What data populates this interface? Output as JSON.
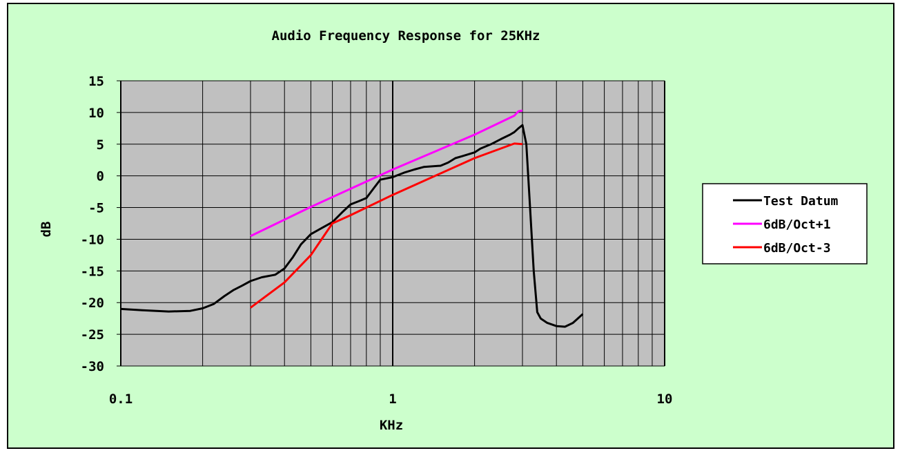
{
  "chart_data": {
    "type": "line",
    "title": "Audio Frequency Response for 25KHz",
    "xlabel": "KHz",
    "ylabel": "dB",
    "x_scale": "log",
    "xlim": [
      0.1,
      10
    ],
    "ylim": [
      -30,
      15
    ],
    "x_ticks": [
      {
        "value": 0.1,
        "label": "0.1"
      },
      {
        "value": 1,
        "label": "1"
      },
      {
        "value": 10,
        "label": "10"
      }
    ],
    "y_ticks": [
      {
        "value": 15,
        "label": "15"
      },
      {
        "value": 10,
        "label": "10"
      },
      {
        "value": 5,
        "label": "5"
      },
      {
        "value": 0,
        "label": "0"
      },
      {
        "value": -5,
        "label": "-5"
      },
      {
        "value": -10,
        "label": "-10"
      },
      {
        "value": -15,
        "label": "-15"
      },
      {
        "value": -20,
        "label": "-20"
      },
      {
        "value": -25,
        "label": "-25"
      },
      {
        "value": -30,
        "label": "-30"
      }
    ],
    "grid": true,
    "plot_background": "#c0c0c0",
    "figure_background": "#ccffcc",
    "legend_position": "right",
    "series": [
      {
        "name": "Test Datum",
        "color": "#000000",
        "points": [
          [
            0.1,
            -21.0
          ],
          [
            0.12,
            -21.2
          ],
          [
            0.15,
            -21.4
          ],
          [
            0.18,
            -21.3
          ],
          [
            0.2,
            -20.9
          ],
          [
            0.22,
            -20.2
          ],
          [
            0.24,
            -19.0
          ],
          [
            0.26,
            -18.0
          ],
          [
            0.28,
            -17.3
          ],
          [
            0.3,
            -16.6
          ],
          [
            0.33,
            -16.0
          ],
          [
            0.37,
            -15.6
          ],
          [
            0.4,
            -14.6
          ],
          [
            0.43,
            -12.8
          ],
          [
            0.46,
            -10.8
          ],
          [
            0.5,
            -9.2
          ],
          [
            0.55,
            -8.2
          ],
          [
            0.6,
            -7.3
          ],
          [
            0.65,
            -5.8
          ],
          [
            0.7,
            -4.5
          ],
          [
            0.75,
            -4.0
          ],
          [
            0.8,
            -3.5
          ],
          [
            0.85,
            -2.0
          ],
          [
            0.9,
            -0.6
          ],
          [
            1.0,
            -0.2
          ],
          [
            1.1,
            0.5
          ],
          [
            1.2,
            1.0
          ],
          [
            1.3,
            1.4
          ],
          [
            1.5,
            1.6
          ],
          [
            1.6,
            2.1
          ],
          [
            1.7,
            2.8
          ],
          [
            1.8,
            3.1
          ],
          [
            2.0,
            3.7
          ],
          [
            2.1,
            4.3
          ],
          [
            2.3,
            5.0
          ],
          [
            2.5,
            5.8
          ],
          [
            2.7,
            6.5
          ],
          [
            2.8,
            6.9
          ],
          [
            2.9,
            7.5
          ],
          [
            3.0,
            8.0
          ],
          [
            3.1,
            5.0
          ],
          [
            3.2,
            -5.0
          ],
          [
            3.3,
            -15.0
          ],
          [
            3.4,
            -21.5
          ],
          [
            3.5,
            -22.5
          ],
          [
            3.7,
            -23.2
          ],
          [
            4.0,
            -23.7
          ],
          [
            4.3,
            -23.8
          ],
          [
            4.6,
            -23.2
          ],
          [
            5.0,
            -21.8
          ]
        ]
      },
      {
        "name": "6dB/Oct+1",
        "color": "#ff00ff",
        "points": [
          [
            0.3,
            -9.5
          ],
          [
            0.5,
            -4.9
          ],
          [
            1.0,
            1.0
          ],
          [
            2.0,
            6.5
          ],
          [
            2.8,
            9.5
          ],
          [
            2.9,
            10.2
          ],
          [
            3.0,
            10.3
          ]
        ]
      },
      {
        "name": "6dB/Oct-3",
        "color": "#ff0000",
        "points": [
          [
            0.3,
            -20.8
          ],
          [
            0.4,
            -16.8
          ],
          [
            0.5,
            -12.5
          ],
          [
            0.6,
            -7.5
          ],
          [
            0.7,
            -6.2
          ],
          [
            1.0,
            -3.0
          ],
          [
            2.0,
            2.8
          ],
          [
            2.8,
            5.1
          ],
          [
            3.0,
            5.0
          ]
        ]
      }
    ]
  }
}
